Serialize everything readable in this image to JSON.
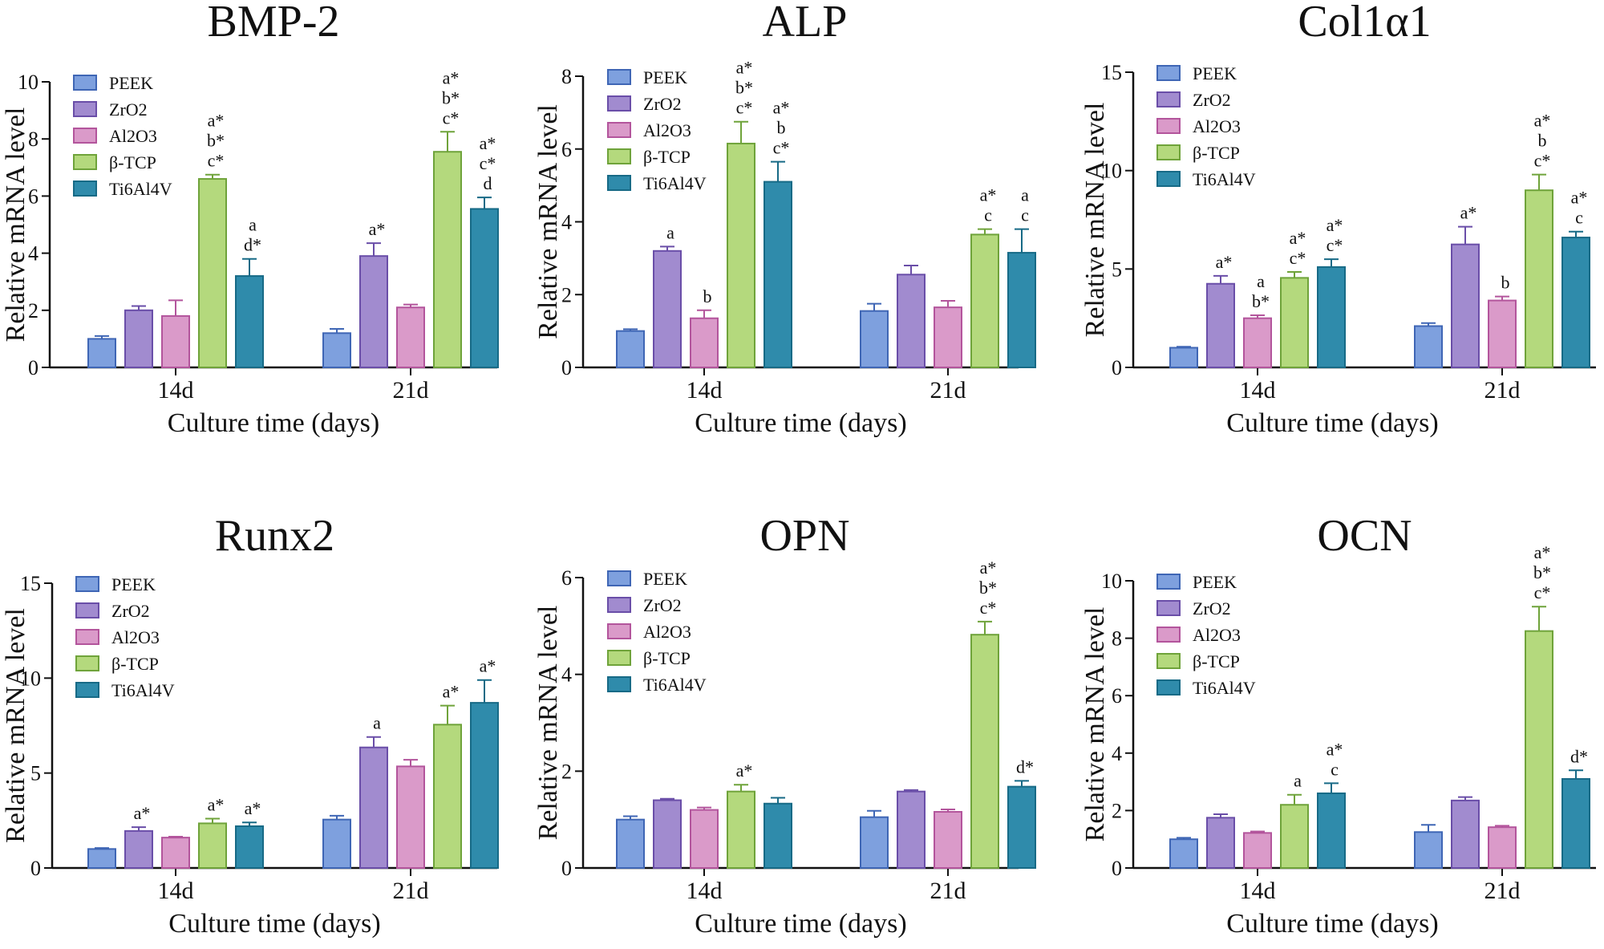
{
  "figure": {
    "background": "#ffffff"
  },
  "style": {
    "fills": [
      "#7ea0de",
      "#a18bcf",
      "#da9ac9",
      "#b4d97d",
      "#2f8bab"
    ],
    "strokes": [
      "#3f66b5",
      "#6a4ea8",
      "#b3559c",
      "#6fa33a",
      "#176a86"
    ]
  },
  "chart_data": [
    {
      "type": "bar",
      "title": "BMP-2",
      "xlabel": "Culture time (days)",
      "ylabel": "Relative mRNA level",
      "ylim": [
        0,
        10
      ],
      "yticks": [
        0,
        2,
        4,
        6,
        8,
        10
      ],
      "categories": [
        "14d",
        "21d"
      ],
      "series": [
        {
          "name": "PEEK",
          "values": [
            1.0,
            1.2
          ],
          "errors": [
            0.1,
            0.15
          ],
          "sig": [
            "",
            ""
          ]
        },
        {
          "name": "ZrO2",
          "values": [
            2.0,
            3.9
          ],
          "errors": [
            0.15,
            0.45
          ],
          "sig": [
            "",
            "a*"
          ]
        },
        {
          "name": "Al2O3",
          "values": [
            1.8,
            2.1
          ],
          "errors": [
            0.55,
            0.1
          ],
          "sig": [
            "",
            ""
          ]
        },
        {
          "name": "β-TCP",
          "values": [
            6.6,
            7.55
          ],
          "errors": [
            0.15,
            0.7
          ],
          "sig": [
            "a*\nb*\nc*",
            "a*\nb*\nc*"
          ]
        },
        {
          "name": "Ti6Al4V",
          "values": [
            3.2,
            5.55
          ],
          "errors": [
            0.6,
            0.4
          ],
          "sig": [
            "a\nd*",
            "a*\nc*\nd"
          ]
        }
      ]
    },
    {
      "type": "bar",
      "title": "ALP",
      "xlabel": "Culture time (days)",
      "ylabel": "Relative mRNA level",
      "ylim": [
        0,
        8
      ],
      "yticks": [
        0,
        2,
        4,
        6,
        8
      ],
      "categories": [
        "14d",
        "21d"
      ],
      "series": [
        {
          "name": "PEEK",
          "values": [
            1.0,
            1.55
          ],
          "errors": [
            0.05,
            0.2
          ],
          "sig": [
            "",
            ""
          ]
        },
        {
          "name": "ZrO2",
          "values": [
            3.2,
            2.55
          ],
          "errors": [
            0.12,
            0.25
          ],
          "sig": [
            "a",
            ""
          ]
        },
        {
          "name": "Al2O3",
          "values": [
            1.35,
            1.65
          ],
          "errors": [
            0.22,
            0.18
          ],
          "sig": [
            "b",
            ""
          ]
        },
        {
          "name": "β-TCP",
          "values": [
            6.15,
            3.65
          ],
          "errors": [
            0.6,
            0.15
          ],
          "sig": [
            "a*\nb*\nc*",
            "a*\nc"
          ]
        },
        {
          "name": "Ti6Al4V",
          "values": [
            5.1,
            3.15
          ],
          "errors": [
            0.55,
            0.65
          ],
          "sig": [
            "a*\nb\nc*",
            "a\nc"
          ]
        }
      ]
    },
    {
      "type": "bar",
      "title": "Col1α1",
      "xlabel": "Culture time (days)",
      "ylabel": "Relative mRNA level",
      "ylim": [
        0,
        15
      ],
      "yticks": [
        0,
        5,
        10,
        15
      ],
      "categories": [
        "14d",
        "21d"
      ],
      "series": [
        {
          "name": "PEEK",
          "values": [
            1.0,
            2.1
          ],
          "errors": [
            0.05,
            0.15
          ],
          "sig": [
            "",
            ""
          ]
        },
        {
          "name": "ZrO2",
          "values": [
            4.25,
            6.25
          ],
          "errors": [
            0.4,
            0.9
          ],
          "sig": [
            "a*",
            "a*"
          ]
        },
        {
          "name": "Al2O3",
          "values": [
            2.5,
            3.4
          ],
          "errors": [
            0.15,
            0.2
          ],
          "sig": [
            "a\nb*",
            "b"
          ]
        },
        {
          "name": "β-TCP",
          "values": [
            4.55,
            9.0
          ],
          "errors": [
            0.3,
            0.8
          ],
          "sig": [
            "a*\nc*",
            "a*\nb\nc*"
          ]
        },
        {
          "name": "Ti6Al4V",
          "values": [
            5.1,
            6.6
          ],
          "errors": [
            0.4,
            0.3
          ],
          "sig": [
            "a*\nc*",
            "a*\nc"
          ]
        }
      ]
    },
    {
      "type": "bar",
      "title": "Runx2",
      "xlabel": "Culture time (days)",
      "ylabel": "Relative mRNA level",
      "ylim": [
        0,
        15
      ],
      "yticks": [
        0,
        5,
        10,
        15
      ],
      "categories": [
        "14d",
        "21d"
      ],
      "series": [
        {
          "name": "PEEK",
          "values": [
            1.0,
            2.55
          ],
          "errors": [
            0.05,
            0.2
          ],
          "sig": [
            "",
            ""
          ]
        },
        {
          "name": "ZrO2",
          "values": [
            1.95,
            6.35
          ],
          "errors": [
            0.2,
            0.55
          ],
          "sig": [
            "a*",
            "a"
          ]
        },
        {
          "name": "Al2O3",
          "values": [
            1.6,
            5.35
          ],
          "errors": [
            0.05,
            0.35
          ],
          "sig": [
            "",
            ""
          ]
        },
        {
          "name": "β-TCP",
          "values": [
            2.35,
            7.55
          ],
          "errors": [
            0.25,
            1.0
          ],
          "sig": [
            "a*",
            "a*"
          ]
        },
        {
          "name": "Ti6Al4V",
          "values": [
            2.2,
            8.7
          ],
          "errors": [
            0.2,
            1.2
          ],
          "sig": [
            "a*",
            "a*"
          ]
        }
      ]
    },
    {
      "type": "bar",
      "title": "OPN",
      "xlabel": "Culture time (days)",
      "ylabel": "Relative mRNA level",
      "ylim": [
        0,
        6
      ],
      "yticks": [
        0,
        2,
        4,
        6
      ],
      "categories": [
        "14d",
        "21d"
      ],
      "series": [
        {
          "name": "PEEK",
          "values": [
            1.0,
            1.05
          ],
          "errors": [
            0.07,
            0.13
          ],
          "sig": [
            "",
            ""
          ]
        },
        {
          "name": "ZrO2",
          "values": [
            1.4,
            1.58
          ],
          "errors": [
            0.03,
            0.03
          ],
          "sig": [
            "",
            ""
          ]
        },
        {
          "name": "Al2O3",
          "values": [
            1.2,
            1.16
          ],
          "errors": [
            0.05,
            0.05
          ],
          "sig": [
            "",
            ""
          ]
        },
        {
          "name": "β-TCP",
          "values": [
            1.58,
            4.82
          ],
          "errors": [
            0.14,
            0.27
          ],
          "sig": [
            "a*",
            "a*\nb*\nc*"
          ]
        },
        {
          "name": "Ti6Al4V",
          "values": [
            1.33,
            1.68
          ],
          "errors": [
            0.12,
            0.12
          ],
          "sig": [
            "",
            "d*"
          ]
        }
      ]
    },
    {
      "type": "bar",
      "title": "OCN",
      "xlabel": "Culture time (days)",
      "ylabel": "Relative mRNA level",
      "ylim": [
        0,
        10
      ],
      "yticks": [
        0,
        2,
        4,
        6,
        8,
        10
      ],
      "categories": [
        "14d",
        "21d"
      ],
      "series": [
        {
          "name": "PEEK",
          "values": [
            1.0,
            1.25
          ],
          "errors": [
            0.05,
            0.25
          ],
          "sig": [
            "",
            ""
          ]
        },
        {
          "name": "ZrO2",
          "values": [
            1.75,
            2.35
          ],
          "errors": [
            0.12,
            0.12
          ],
          "sig": [
            "",
            ""
          ]
        },
        {
          "name": "Al2O3",
          "values": [
            1.22,
            1.42
          ],
          "errors": [
            0.05,
            0.05
          ],
          "sig": [
            "",
            ""
          ]
        },
        {
          "name": "β-TCP",
          "values": [
            2.2,
            8.25
          ],
          "errors": [
            0.35,
            0.85
          ],
          "sig": [
            "a",
            "a*\nb*\nc*"
          ]
        },
        {
          "name": "Ti6Al4V",
          "values": [
            2.6,
            3.1
          ],
          "errors": [
            0.35,
            0.3
          ],
          "sig": [
            "a*\nc",
            "d*"
          ]
        }
      ]
    }
  ]
}
